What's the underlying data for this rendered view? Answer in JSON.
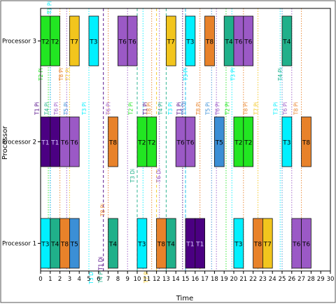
{
  "chart_data": {
    "type": "gantt",
    "title": "",
    "xlabel": "Time",
    "ylabel": "Processor",
    "xlim": [
      0,
      30
    ],
    "x_ticks": [
      0,
      1,
      2,
      3,
      4,
      5,
      6,
      7,
      8,
      9,
      10,
      11,
      12,
      13,
      14,
      15,
      16,
      17,
      18,
      19,
      20,
      21,
      22,
      23,
      24,
      25,
      26,
      27,
      28,
      29,
      30
    ],
    "y_categories": [
      "Processor 3",
      "Processor 2",
      "Processor 1"
    ],
    "colors": {
      "T1": "#4b0082",
      "T2": "#22e622",
      "T3": "#00f0ff",
      "T4": "#20b08a",
      "T5": "#3b8fd6",
      "T6": "#9b59c6",
      "T7": "#f2c51d",
      "T8": "#e8822a",
      "border": "#111111",
      "axis": "#000000"
    },
    "bars": [
      {
        "processor": "Processor 3",
        "task": "T2",
        "start": 0,
        "end": 1
      },
      {
        "processor": "Processor 3",
        "task": "T2",
        "start": 1,
        "end": 2
      },
      {
        "processor": "Processor 3",
        "task": "T7",
        "start": 3,
        "end": 4
      },
      {
        "processor": "Processor 3",
        "task": "T3",
        "start": 5,
        "end": 6
      },
      {
        "processor": "Processor 3",
        "task": "T6",
        "start": 8,
        "end": 9
      },
      {
        "processor": "Processor 3",
        "task": "T6",
        "start": 9,
        "end": 10
      },
      {
        "processor": "Processor 3",
        "task": "T7",
        "start": 13,
        "end": 14
      },
      {
        "processor": "Processor 3",
        "task": "T3",
        "start": 15,
        "end": 16
      },
      {
        "processor": "Processor 3",
        "task": "T8",
        "start": 17,
        "end": 18
      },
      {
        "processor": "Processor 3",
        "task": "T4",
        "start": 19,
        "end": 20
      },
      {
        "processor": "Processor 3",
        "task": "T6",
        "start": 20,
        "end": 21
      },
      {
        "processor": "Processor 3",
        "task": "T6",
        "start": 21,
        "end": 22
      },
      {
        "processor": "Processor 3",
        "task": "T4",
        "start": 25,
        "end": 26
      },
      {
        "processor": "Processor 2",
        "task": "T1",
        "start": 0,
        "end": 1
      },
      {
        "processor": "Processor 2",
        "task": "T1",
        "start": 1,
        "end": 2
      },
      {
        "processor": "Processor 2",
        "task": "T6",
        "start": 2,
        "end": 3
      },
      {
        "processor": "Processor 2",
        "task": "T6",
        "start": 3,
        "end": 4
      },
      {
        "processor": "Processor 2",
        "task": "T8",
        "start": 7,
        "end": 8
      },
      {
        "processor": "Processor 2",
        "task": "T2",
        "start": 10,
        "end": 11
      },
      {
        "processor": "Processor 2",
        "task": "T2",
        "start": 11,
        "end": 12
      },
      {
        "processor": "Processor 2",
        "task": "T6",
        "start": 14,
        "end": 15
      },
      {
        "processor": "Processor 2",
        "task": "T6",
        "start": 15,
        "end": 16
      },
      {
        "processor": "Processor 2",
        "task": "T5",
        "start": 18,
        "end": 19
      },
      {
        "processor": "Processor 2",
        "task": "T2",
        "start": 20,
        "end": 21
      },
      {
        "processor": "Processor 2",
        "task": "T2",
        "start": 21,
        "end": 22
      },
      {
        "processor": "Processor 2",
        "task": "T3",
        "start": 25,
        "end": 26
      },
      {
        "processor": "Processor 2",
        "task": "T8",
        "start": 27,
        "end": 28
      },
      {
        "processor": "Processor 1",
        "task": "T3",
        "start": 0,
        "end": 1
      },
      {
        "processor": "Processor 1",
        "task": "T4",
        "start": 1,
        "end": 2
      },
      {
        "processor": "Processor 1",
        "task": "T8",
        "start": 2,
        "end": 3
      },
      {
        "processor": "Processor 1",
        "task": "T5",
        "start": 3,
        "end": 4
      },
      {
        "processor": "Processor 1",
        "task": "T4",
        "start": 7,
        "end": 8
      },
      {
        "processor": "Processor 1",
        "task": "T3",
        "start": 10,
        "end": 11
      },
      {
        "processor": "Processor 1",
        "task": "T8",
        "start": 12,
        "end": 13
      },
      {
        "processor": "Processor 1",
        "task": "T4",
        "start": 13,
        "end": 14
      },
      {
        "processor": "Processor 1",
        "task": "T1",
        "start": 15,
        "end": 16
      },
      {
        "processor": "Processor 1",
        "task": "T1",
        "start": 16,
        "end": 17
      },
      {
        "processor": "Processor 1",
        "task": "T3",
        "start": 20,
        "end": 21
      },
      {
        "processor": "Processor 1",
        "task": "T8",
        "start": 22,
        "end": 23
      },
      {
        "processor": "Processor 1",
        "task": "T7",
        "start": 23,
        "end": 24
      },
      {
        "processor": "Processor 1",
        "task": "T6",
        "start": 26,
        "end": 27
      },
      {
        "processor": "Processor 1",
        "task": "T6",
        "start": 27,
        "end": 28
      }
    ],
    "event_lines": [
      {
        "x": 1.0,
        "color": "#4b0082",
        "style": "dotted"
      },
      {
        "x": 0.8,
        "color": "#22e622",
        "style": "dotted"
      },
      {
        "x": 1.0,
        "color": "#00f0ff",
        "style": "dotted"
      },
      {
        "x": 2.0,
        "color": "#e8822a",
        "style": "dotted"
      },
      {
        "x": 2.7,
        "color": "#9b59c6",
        "style": "dotted"
      },
      {
        "x": 3.0,
        "color": "#f2c51d",
        "style": "dotted"
      },
      {
        "x": 5.0,
        "color": "#00f0ff",
        "style": "dotted"
      },
      {
        "x": 6.5,
        "color": "#4b0082",
        "style": "dashed"
      },
      {
        "x": 7.0,
        "color": "#e8822a",
        "style": "dotted"
      },
      {
        "x": 9.0,
        "color": "#9b59c6",
        "style": "dotted"
      },
      {
        "x": 10.0,
        "color": "#20b08a",
        "style": "dashed"
      },
      {
        "x": 10.6,
        "color": "#00f0ff",
        "style": "dotted"
      },
      {
        "x": 11.5,
        "color": "#e8822a",
        "style": "dotted"
      },
      {
        "x": 12.0,
        "color": "#f2c51d",
        "style": "dashed"
      },
      {
        "x": 12.3,
        "color": "#9b59c6",
        "style": "dotted"
      },
      {
        "x": 13.0,
        "color": "#20b08a",
        "style": "dashed"
      },
      {
        "x": 14.7,
        "color": "#4b0082",
        "style": "dotted"
      },
      {
        "x": 15.0,
        "color": "#3b8fd6",
        "style": "dashed"
      },
      {
        "x": 15.0,
        "color": "#00f0ff",
        "style": "dotted"
      },
      {
        "x": 16.5,
        "color": "#e8822a",
        "style": "dotted"
      },
      {
        "x": 17.7,
        "color": "#3b8fd6",
        "style": "dotted"
      },
      {
        "x": 18.2,
        "color": "#9b59c6",
        "style": "dotted"
      },
      {
        "x": 19.2,
        "color": "#22e622",
        "style": "dotted"
      },
      {
        "x": 19.8,
        "color": "#00f0ff",
        "style": "dotted"
      },
      {
        "x": 21.0,
        "color": "#e8822a",
        "style": "dotted"
      },
      {
        "x": 22.5,
        "color": "#f2c51d",
        "style": "dotted"
      },
      {
        "x": 24.8,
        "color": "#00f0ff",
        "style": "dotted"
      },
      {
        "x": 25.0,
        "color": "#3b8fd6",
        "style": "dotted"
      },
      {
        "x": 26.0,
        "color": "#9b59c6",
        "style": "dotted"
      },
      {
        "x": 27.0,
        "color": "#e8822a",
        "style": "dotted"
      }
    ],
    "event_labels": [
      {
        "text": "T3 Pi",
        "x": 0.9,
        "row": "Processor 3",
        "pos": "above",
        "color": "#00f0ff"
      },
      {
        "text": "T2 Pi",
        "x": 0.0,
        "row": "Processor 3",
        "pos": "below",
        "color": "#22e622"
      },
      {
        "text": "T8 Pi",
        "x": 2.1,
        "row": "Processor 3",
        "pos": "below",
        "color": "#e8822a"
      },
      {
        "text": "T7 Pi",
        "x": 2.8,
        "row": "Processor 3",
        "pos": "below",
        "color": "#f2c51d"
      },
      {
        "text": "T3 Pi",
        "x": 15.0,
        "row": "Processor 3",
        "pos": "below",
        "color": "#00f0ff"
      },
      {
        "text": "T3 Pi",
        "x": 19.9,
        "row": "Processor 3",
        "pos": "below",
        "color": "#00f0ff"
      },
      {
        "text": "T4 Pi",
        "x": 24.8,
        "row": "Processor 3",
        "pos": "below",
        "color": "#20b08a"
      },
      {
        "text": "T1 Pi",
        "x": -0.4,
        "row": "Processor 2",
        "pos": "above",
        "color": "#4b0082"
      },
      {
        "text": "T4 Pi",
        "x": 0.6,
        "row": "Processor 2",
        "pos": "above",
        "color": "#20b08a"
      },
      {
        "text": "T6 Pi",
        "x": 1.6,
        "row": "Processor 2",
        "pos": "above",
        "color": "#9b59c6"
      },
      {
        "text": "T5 Pi",
        "x": 2.6,
        "row": "Processor 2",
        "pos": "above",
        "color": "#3b8fd6"
      },
      {
        "text": "T3 Pi",
        "x": 4.5,
        "row": "Processor 2",
        "pos": "above",
        "color": "#00f0ff"
      },
      {
        "text": "T6 Pi",
        "x": 7.0,
        "row": "Processor 2",
        "pos": "above",
        "color": "#9b59c6"
      },
      {
        "text": "T2 Pi",
        "x": 9.3,
        "row": "Processor 2",
        "pos": "above",
        "color": "#22e622"
      },
      {
        "text": "T3 Di",
        "x": 9.5,
        "row": "Processor 2",
        "pos": "below",
        "color": "#20b08a"
      },
      {
        "text": "T1 Pi",
        "x": 10.8,
        "row": "Processor 2",
        "pos": "above",
        "color": "#4b0082"
      },
      {
        "text": "T8 Pi",
        "x": 11.2,
        "row": "Processor 2",
        "pos": "above",
        "color": "#e8822a"
      },
      {
        "text": "T6 Di",
        "x": 12.2,
        "row": "Processor 2",
        "pos": "below",
        "color": "#9b59c6"
      },
      {
        "text": "T4 Pi",
        "x": 12.4,
        "row": "Processor 2",
        "pos": "above",
        "color": "#20b08a"
      },
      {
        "text": "T3 Pi",
        "x": 13.4,
        "row": "Processor 2",
        "pos": "above",
        "color": "#00f0ff"
      },
      {
        "text": "T1 Pi",
        "x": 14.3,
        "row": "Processor 2",
        "pos": "above",
        "color": "#4b0082"
      },
      {
        "text": "T5 Di",
        "x": 14.8,
        "row": "Processor 2",
        "pos": "above",
        "color": "#3b8fd6"
      },
      {
        "text": "T8 Pi",
        "x": 16.3,
        "row": "Processor 2",
        "pos": "above",
        "color": "#e8822a"
      },
      {
        "text": "T5 Pi",
        "x": 17.3,
        "row": "Processor 2",
        "pos": "above",
        "color": "#3b8fd6"
      },
      {
        "text": "T6 Pi",
        "x": 18.3,
        "row": "Processor 2",
        "pos": "above",
        "color": "#9b59c6"
      },
      {
        "text": "T2 Pi",
        "x": 19.3,
        "row": "Processor 2",
        "pos": "above",
        "color": "#22e622"
      },
      {
        "text": "T8 Pi",
        "x": 21.2,
        "row": "Processor 2",
        "pos": "above",
        "color": "#e8822a"
      },
      {
        "text": "T7 Pi",
        "x": 22.3,
        "row": "Processor 2",
        "pos": "above",
        "color": "#f2c51d"
      },
      {
        "text": "T3 Pi",
        "x": 24.3,
        "row": "Processor 2",
        "pos": "above",
        "color": "#00f0ff"
      },
      {
        "text": "T6 Pi",
        "x": 25.3,
        "row": "Processor 2",
        "pos": "above",
        "color": "#9b59c6"
      },
      {
        "text": "T8 Pi",
        "x": 26.4,
        "row": "Processor 2",
        "pos": "above",
        "color": "#e8822a"
      },
      {
        "text": "T8 Pi",
        "x": 6.4,
        "row": "Processor 1",
        "pos": "above",
        "color": "#e8822a"
      },
      {
        "text": "T4 Pi",
        "x": 6.2,
        "row": "Processor 1",
        "pos": "below",
        "color": "#20b08a"
      },
      {
        "text": "T3 Di",
        "x": 5.2,
        "row": "Processor 1",
        "pos": "below",
        "color": "#00f0ff"
      },
      {
        "text": "T1 Di",
        "x": 6.2,
        "row": "Processor 1",
        "pos": "bottom",
        "color": "#4b0082"
      },
      {
        "text": "T7 Pi",
        "x": 10.9,
        "row": "Processor 1",
        "pos": "below",
        "color": "#f2c51d"
      }
    ]
  }
}
